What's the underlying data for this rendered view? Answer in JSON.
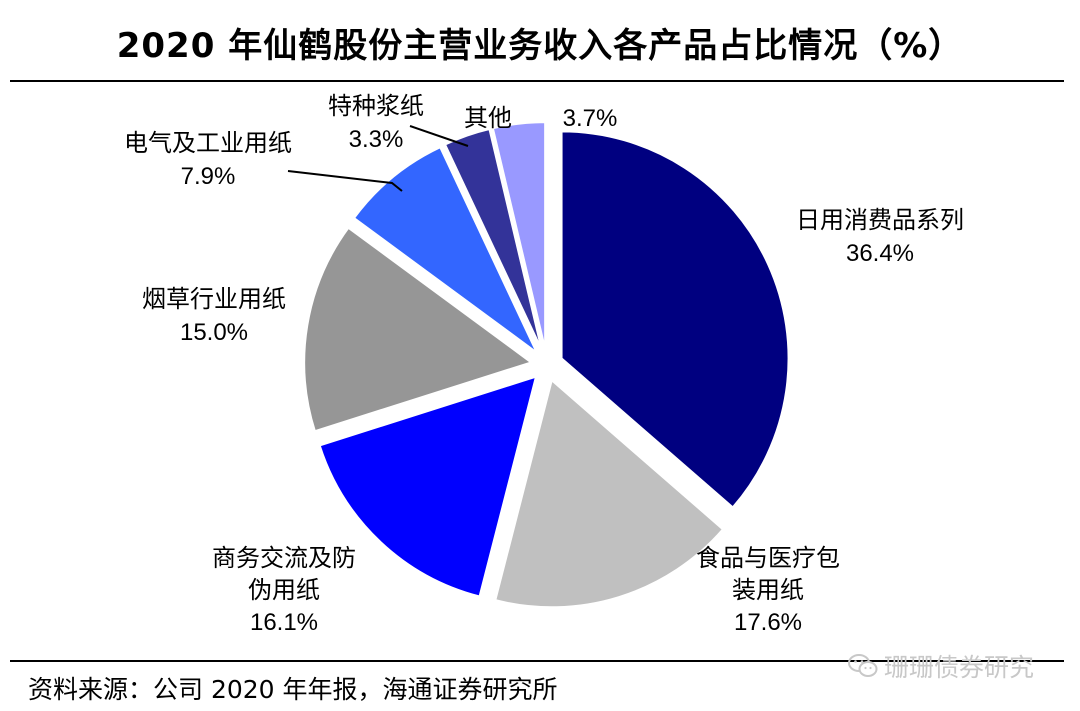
{
  "title": "2020 年仙鹤股份主营业务收入各产品占比情况（%）",
  "footer": "资料来源：公司 2020 年年报，海通证券研究所",
  "watermark": "珊珊债券研究",
  "chart_data": {
    "type": "pie",
    "title": "2020 年仙鹤股份主营业务收入各产品占比情况（%）",
    "slices": [
      {
        "label": [
          "日用消费品系列"
        ],
        "value": 36.4,
        "pct_label": "36.4%",
        "color": "#000080"
      },
      {
        "label": [
          "食品与医疗包",
          "装用纸"
        ],
        "value": 17.6,
        "pct_label": "17.6%",
        "color": "#c0c0c0"
      },
      {
        "label": [
          "商务交流及防",
          "伪用纸"
        ],
        "value": 16.1,
        "pct_label": "16.1%",
        "color": "#0000ff"
      },
      {
        "label": [
          "烟草行业用纸"
        ],
        "value": 15.0,
        "pct_label": "15.0%",
        "color": "#969696"
      },
      {
        "label": [
          "电气及工业用纸"
        ],
        "value": 7.9,
        "pct_label": "7.9%",
        "color": "#3366ff"
      },
      {
        "label": [
          "特种浆纸"
        ],
        "value": 3.3,
        "pct_label": "3.3%",
        "color": "#333399"
      },
      {
        "label": [
          "其他"
        ],
        "value": 3.7,
        "pct_label": "3.7%",
        "color": "#9999ff"
      }
    ]
  }
}
